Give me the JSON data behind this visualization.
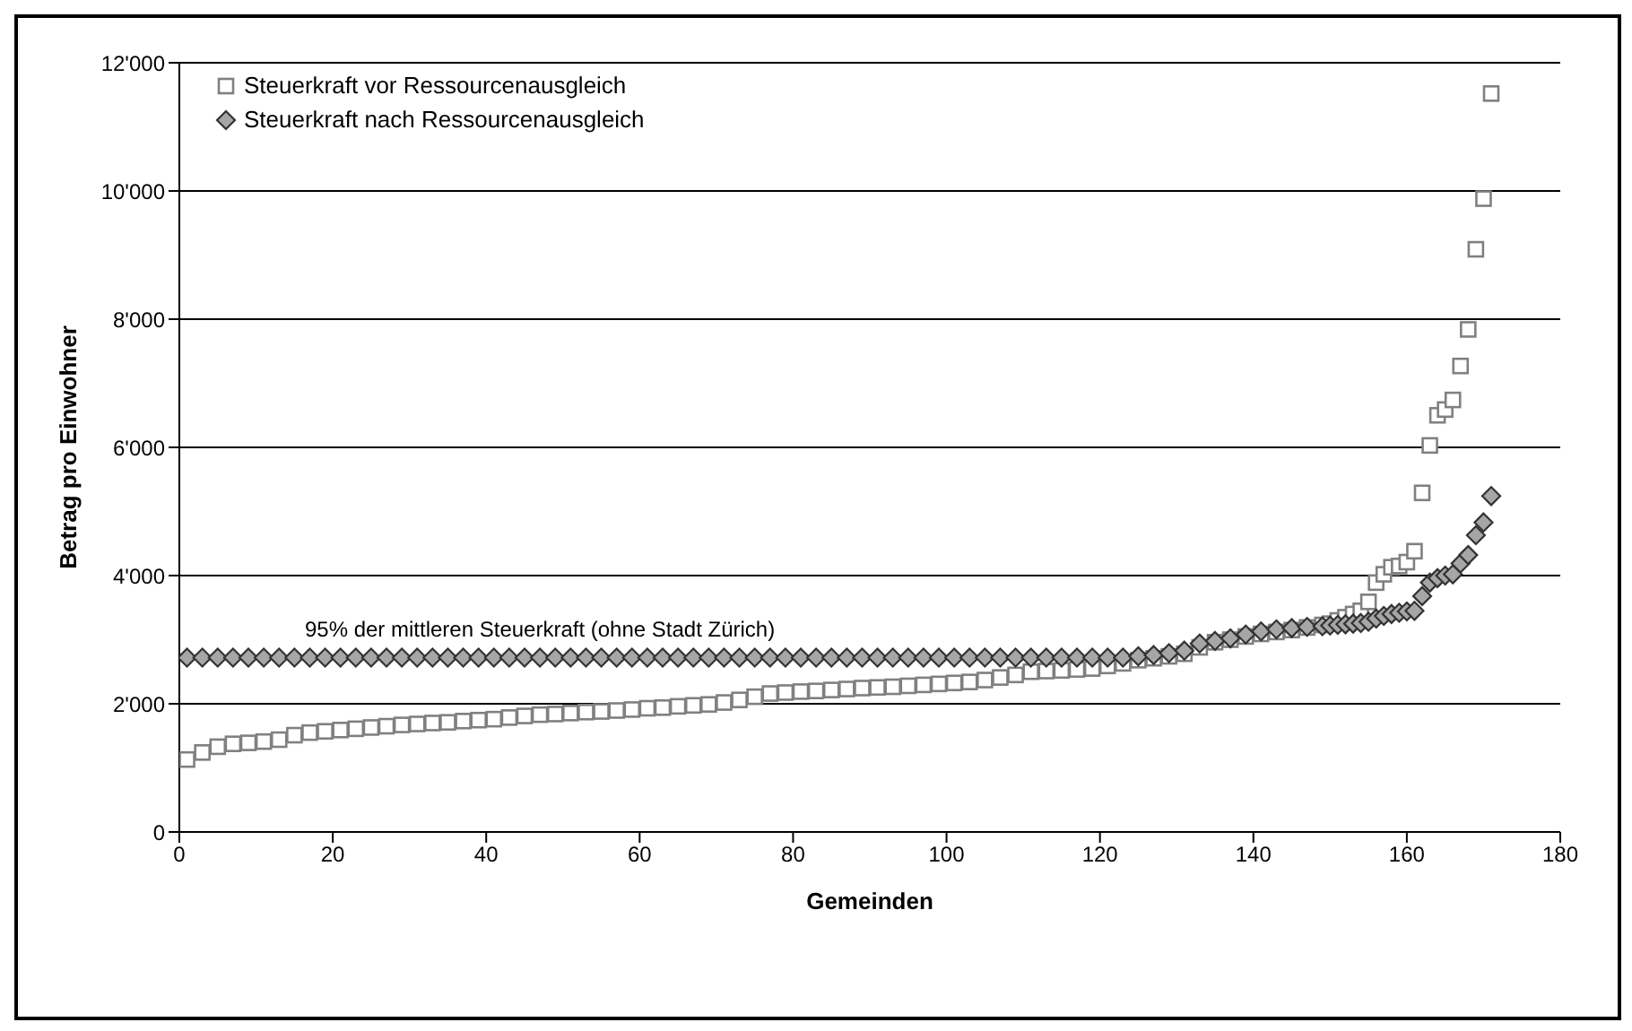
{
  "chart_data": {
    "type": "scatter",
    "xlabel": "Gemeinden",
    "ylabel": "Betrag pro Einwohner",
    "x": [
      1,
      3,
      5,
      7,
      9,
      11,
      13,
      15,
      17,
      19,
      21,
      23,
      25,
      27,
      29,
      31,
      33,
      35,
      37,
      39,
      41,
      43,
      45,
      47,
      49,
      51,
      53,
      55,
      57,
      59,
      61,
      63,
      65,
      67,
      69,
      71,
      73,
      75,
      77,
      79,
      81,
      83,
      85,
      87,
      89,
      91,
      93,
      95,
      97,
      99,
      101,
      103,
      105,
      107,
      109,
      111,
      113,
      115,
      117,
      119,
      121,
      123,
      125,
      127,
      129,
      131,
      133,
      135,
      137,
      139,
      141,
      143,
      145,
      147,
      149,
      150,
      151,
      152,
      153,
      154,
      155,
      156,
      157,
      158,
      159,
      160,
      161,
      162,
      163,
      164,
      165,
      166,
      167,
      168,
      169,
      170,
      171
    ],
    "series": [
      {
        "name": "Steuerkraft vor Ressourcenausgleich",
        "color": "#808080",
        "marker": "square",
        "values": [
          1130,
          1240,
          1330,
          1375,
          1390,
          1410,
          1440,
          1510,
          1550,
          1570,
          1590,
          1610,
          1630,
          1650,
          1670,
          1685,
          1700,
          1710,
          1730,
          1745,
          1760,
          1785,
          1810,
          1830,
          1840,
          1855,
          1870,
          1880,
          1895,
          1910,
          1930,
          1940,
          1960,
          1975,
          1990,
          2020,
          2060,
          2110,
          2160,
          2175,
          2190,
          2200,
          2215,
          2230,
          2245,
          2255,
          2265,
          2280,
          2295,
          2310,
          2325,
          2340,
          2370,
          2410,
          2450,
          2500,
          2510,
          2520,
          2535,
          2550,
          2590,
          2630,
          2680,
          2710,
          2740,
          2780,
          2880,
          2960,
          3000,
          3050,
          3090,
          3120,
          3150,
          3190,
          3230,
          3250,
          3300,
          3350,
          3400,
          3450,
          3590,
          3890,
          4020,
          4130,
          4150,
          4210,
          4380,
          5290,
          6030,
          6500,
          6590,
          6740,
          7270,
          7840,
          9090,
          9880,
          11520
        ]
      },
      {
        "name": "Steuerkraft nach Ressourcenausgleich",
        "color": "#a6a6a6",
        "marker": "diamond",
        "values": [
          2720,
          2720,
          2720,
          2720,
          2720,
          2720,
          2720,
          2720,
          2720,
          2720,
          2720,
          2720,
          2720,
          2720,
          2720,
          2720,
          2720,
          2720,
          2720,
          2720,
          2720,
          2720,
          2720,
          2720,
          2720,
          2720,
          2720,
          2720,
          2720,
          2720,
          2720,
          2720,
          2720,
          2720,
          2720,
          2720,
          2720,
          2720,
          2720,
          2720,
          2720,
          2720,
          2720,
          2720,
          2720,
          2720,
          2720,
          2720,
          2720,
          2720,
          2720,
          2720,
          2720,
          2720,
          2720,
          2720,
          2720,
          2720,
          2720,
          2720,
          2720,
          2720,
          2740,
          2760,
          2790,
          2830,
          2940,
          2980,
          3020,
          3080,
          3130,
          3160,
          3180,
          3200,
          3210,
          3220,
          3230,
          3240,
          3250,
          3260,
          3280,
          3330,
          3370,
          3400,
          3420,
          3440,
          3450,
          3680,
          3890,
          3960,
          4000,
          4020,
          4190,
          4320,
          4630,
          4830,
          5240
        ]
      }
    ],
    "xlim": [
      0,
      180
    ],
    "xticks": [
      0,
      20,
      40,
      60,
      80,
      100,
      120,
      140,
      160,
      180
    ],
    "ylim": [
      0,
      12000
    ],
    "yticks": [
      0,
      {
        "value": 2000,
        "label": "2'000"
      },
      {
        "value": 4000,
        "label": "4'000"
      },
      {
        "value": 6000,
        "label": "6'000"
      },
      {
        "value": 8000,
        "label": "8'000"
      },
      {
        "value": 10000,
        "label": "10'000"
      },
      {
        "value": 12000,
        "label": "12'000"
      }
    ],
    "grid": "y",
    "legend": "top left",
    "annotations": [
      {
        "text": "95% der mittleren Steuerkraft (ohne Stadt Zürich)",
        "x": 47,
        "y": 2720
      }
    ]
  }
}
